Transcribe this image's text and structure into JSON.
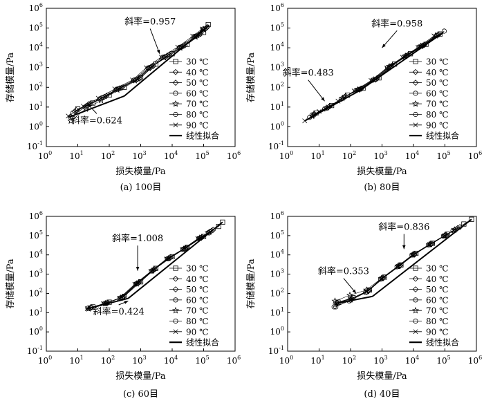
{
  "figure": {
    "legend_entries": [
      "30 ℃",
      "40 ℃",
      "50 ℃",
      "60 ℃",
      "70 ℃",
      "80 ℃",
      "90 ℃",
      "线性拟合"
    ],
    "legend_markers": [
      "square",
      "diamond",
      "diamond",
      "circle",
      "star",
      "circle",
      "x",
      "line"
    ],
    "y_ticks": [
      {
        "exp": -1,
        "label": "10",
        "sup": "-1"
      },
      {
        "exp": 0,
        "label": "10",
        "sup": "0"
      },
      {
        "exp": 1,
        "label": "10",
        "sup": "1"
      },
      {
        "exp": 2,
        "label": "10",
        "sup": "2"
      },
      {
        "exp": 3,
        "label": "10",
        "sup": "3"
      },
      {
        "exp": 4,
        "label": "10",
        "sup": "4"
      },
      {
        "exp": 5,
        "label": "10",
        "sup": "5"
      },
      {
        "exp": 6,
        "label": "10",
        "sup": "6"
      }
    ],
    "x_ticks": [
      {
        "exp": 0,
        "label": "10",
        "sup": "0"
      },
      {
        "exp": 1,
        "label": "10",
        "sup": "1"
      },
      {
        "exp": 2,
        "label": "10",
        "sup": "2"
      },
      {
        "exp": 3,
        "label": "10",
        "sup": "3"
      },
      {
        "exp": 4,
        "label": "10",
        "sup": "4"
      },
      {
        "exp": 5,
        "label": "10",
        "sup": "5"
      },
      {
        "exp": 6,
        "label": "10",
        "sup": "6"
      }
    ]
  },
  "chart_data": [
    {
      "type": "scatter",
      "id": "a",
      "caption": "(a) 100目",
      "xlabel": "损失模量/Pa",
      "ylabel": "存储模量/Pa",
      "xscale": "log",
      "yscale": "log",
      "xlim": [
        1,
        1000000
      ],
      "ylim": [
        0.1,
        1000000
      ],
      "annotations": [
        {
          "text": "斜率=0.957",
          "x": 2000,
          "y": 150000,
          "arrow_to": [
            4000,
            5000
          ]
        },
        {
          "text": "斜率=0.624",
          "x": 40,
          "y": 1.5,
          "arrow_to": [
            20,
            15
          ]
        }
      ],
      "fits": [
        {
          "slope": 0.624,
          "x": [
            5,
            300
          ],
          "y": [
            3,
            36
          ]
        },
        {
          "slope": 0.957,
          "x": [
            300,
            150000
          ],
          "y": [
            36,
            140000
          ]
        }
      ],
      "series": [
        {
          "name": "30 ℃",
          "x": [
            10,
            30,
            100,
            300,
            1000,
            3000,
            10000,
            30000,
            100000,
            140000
          ],
          "y": [
            8,
            16,
            40,
            100,
            300,
            1500,
            5000,
            15000,
            60000,
            150000
          ]
        },
        {
          "name": "40 ℃",
          "x": [
            9,
            25,
            80,
            250,
            900,
            2500,
            8000,
            25000,
            80000,
            130000
          ],
          "y": [
            7,
            15,
            36,
            95,
            280,
            1200,
            4500,
            13000,
            50000,
            110000
          ]
        },
        {
          "name": "50 ℃",
          "x": [
            8,
            22,
            70,
            220,
            800,
            2200,
            7000,
            22000,
            70000,
            120000
          ],
          "y": [
            6,
            14,
            33,
            90,
            260,
            1100,
            4000,
            12000,
            45000,
            100000
          ]
        },
        {
          "name": "60 ℃",
          "x": [
            7,
            20,
            60,
            200,
            700,
            2000,
            6000,
            20000,
            60000,
            110000
          ],
          "y": [
            5,
            12,
            30,
            85,
            240,
            1000,
            3500,
            11000,
            40000,
            90000
          ]
        },
        {
          "name": "70 ℃",
          "x": [
            6,
            18,
            55,
            180,
            650,
            1800,
            5500,
            18000,
            55000,
            100000
          ],
          "y": [
            2,
            8,
            22,
            75,
            220,
            900,
            3200,
            10000,
            36000,
            85000
          ]
        },
        {
          "name": "80 ℃",
          "x": [
            6,
            17,
            50,
            170,
            600,
            1700,
            5000,
            17000,
            50000,
            95000
          ],
          "y": [
            3,
            10,
            26,
            80,
            230,
            950,
            3300,
            10500,
            38000,
            88000
          ]
        },
        {
          "name": "90 ℃",
          "x": [
            5,
            15,
            45,
            150,
            550,
            1500,
            4500,
            15000,
            45000,
            90000
          ],
          "y": [
            3.5,
            11,
            28,
            82,
            235,
            980,
            3400,
            10800,
            39000,
            89000
          ]
        }
      ]
    },
    {
      "type": "scatter",
      "id": "b",
      "caption": "(b)  80目",
      "xlabel": "损失模量/Pa",
      "ylabel": "存储模量/Pa",
      "xscale": "log",
      "yscale": "log",
      "xlim": [
        1,
        1000000
      ],
      "ylim": [
        0.1,
        1000000
      ],
      "annotations": [
        {
          "text": "斜率=0.958",
          "x": 3000,
          "y": 120000,
          "arrow_to": [
            1000,
            10000
          ]
        },
        {
          "text": "斜率=0.483",
          "x": 4.5,
          "y": 380,
          "arrow_to": [
            15,
            20
          ]
        }
      ],
      "fits": [
        {
          "slope": 0.483,
          "x": [
            3.5,
            200
          ],
          "y": [
            2,
            70
          ]
        },
        {
          "slope": 0.958,
          "x": [
            200,
            90000
          ],
          "y": [
            70,
            60000
          ]
        }
      ],
      "series": [
        {
          "name": "30 ℃",
          "x": [
            8,
            25,
            80,
            250,
            800,
            2500,
            8000,
            25000,
            70000
          ],
          "y": [
            5,
            12,
            40,
            90,
            300,
            1500,
            5000,
            15000,
            50000
          ]
        },
        {
          "name": "40 ℃",
          "x": [
            7,
            22,
            70,
            220,
            700,
            2200,
            7000,
            22000,
            65000
          ],
          "y": [
            4.5,
            11,
            36,
            85,
            280,
            1300,
            4500,
            14000,
            48000
          ]
        },
        {
          "name": "50 ℃",
          "x": [
            7,
            20,
            65,
            200,
            650,
            2000,
            6500,
            20000,
            60000
          ],
          "y": [
            4,
            10,
            33,
            80,
            260,
            1200,
            4200,
            13000,
            45000
          ]
        },
        {
          "name": "60 ℃",
          "x": [
            6,
            18,
            60,
            180,
            600,
            1800,
            6000,
            18000,
            55000
          ],
          "y": [
            4,
            9,
            30,
            78,
            250,
            1150,
            4000,
            12500,
            43000
          ]
        },
        {
          "name": "70 ℃",
          "x": [
            6,
            17,
            55,
            170,
            550,
            1700,
            5500,
            17000,
            50000
          ],
          "y": [
            3.5,
            9,
            28,
            75,
            240,
            1100,
            3800,
            12000,
            41000
          ]
        },
        {
          "name": "80 ℃",
          "x": [
            5,
            15,
            50,
            150,
            500,
            1500,
            5000,
            15000,
            95000
          ],
          "y": [
            3,
            8,
            25,
            70,
            230,
            1000,
            3500,
            11000,
            70000
          ]
        },
        {
          "name": "90 ℃",
          "x": [
            3.5,
            10,
            40,
            130,
            450,
            1400,
            4500,
            14000,
            45000
          ],
          "y": [
            2,
            6,
            20,
            65,
            220,
            950,
            3300,
            10500,
            40000
          ]
        }
      ]
    },
    {
      "type": "scatter",
      "id": "c",
      "caption": "(c)  60目",
      "xlabel": "损失模量/Pa",
      "ylabel": "存储模量/Pa",
      "xscale": "log",
      "yscale": "log",
      "xlim": [
        1,
        1000000
      ],
      "ylim": [
        0.1,
        1000000
      ],
      "annotations": [
        {
          "text": "斜率=1.008",
          "x": 800,
          "y": 50000,
          "arrow_to": [
            800,
            1500
          ]
        },
        {
          "text": "斜率=0.424",
          "x": 200,
          "y": 8,
          "arrow_to": [
            400,
            40
          ]
        }
      ],
      "fits": [
        {
          "slope": 0.424,
          "x": [
            20,
            400
          ],
          "y": [
            16,
            55
          ]
        },
        {
          "slope": 1.008,
          "x": [
            400,
            400000
          ],
          "y": [
            55,
            500000
          ]
        }
      ],
      "series": [
        {
          "name": "30 ℃",
          "x": [
            30,
            100,
            300,
            1000,
            3000,
            10000,
            30000,
            100000,
            300000,
            400000
          ],
          "y": [
            20,
            35,
            70,
            400,
            2000,
            8000,
            25000,
            90000,
            300000,
            500000
          ]
        },
        {
          "name": "40 ℃",
          "x": [
            28,
            90,
            280,
            900,
            2800,
            9000,
            28000,
            90000,
            200000
          ],
          "y": [
            19,
            33,
            65,
            380,
            1800,
            7500,
            23000,
            85000,
            200000
          ]
        },
        {
          "name": "50 ℃",
          "x": [
            26,
            85,
            260,
            850,
            2600,
            8500,
            26000,
            85000,
            180000
          ],
          "y": [
            18,
            32,
            62,
            360,
            1700,
            7000,
            22000,
            80000,
            180000
          ]
        },
        {
          "name": "60 ℃",
          "x": [
            25,
            80,
            250,
            800,
            2500,
            8000,
            25000,
            80000,
            160000
          ],
          "y": [
            18,
            31,
            60,
            340,
            1600,
            6800,
            21000,
            78000,
            160000
          ]
        },
        {
          "name": "70 ℃",
          "x": [
            22,
            75,
            230,
            750,
            2300,
            7500,
            23000,
            75000,
            150000
          ],
          "y": [
            16,
            30,
            58,
            320,
            1500,
            6500,
            20000,
            75000,
            150000
          ]
        },
        {
          "name": "80 ℃",
          "x": [
            21,
            70,
            220,
            700,
            2200,
            7000,
            22000,
            70000,
            140000
          ],
          "y": [
            17,
            30,
            57,
            310,
            1450,
            6300,
            19500,
            72000,
            140000
          ]
        },
        {
          "name": "90 ℃",
          "x": [
            20,
            65,
            210,
            650,
            2100,
            6500,
            21000,
            65000,
            130000
          ],
          "y": [
            16,
            29,
            56,
            300,
            1400,
            6100,
            19000,
            70000,
            130000
          ]
        }
      ]
    },
    {
      "type": "scatter",
      "id": "d",
      "caption": "(d)  40目",
      "xlabel": "损失模量/Pa",
      "ylabel": "存储模量/Pa",
      "xscale": "log",
      "yscale": "log",
      "xlim": [
        1,
        1000000
      ],
      "ylim": [
        0.1,
        1000000
      ],
      "annotations": [
        {
          "text": "斜率=0.836",
          "x": 5000,
          "y": 200000,
          "arrow_to": [
            5000,
            20000
          ]
        },
        {
          "text": "斜率=0.353",
          "x": 60,
          "y": 1000,
          "arrow_to": [
            150,
            100
          ]
        }
      ],
      "fits": [
        {
          "slope": 0.353,
          "x": [
            35,
            500
          ],
          "y": [
            30,
            70
          ]
        },
        {
          "slope": 0.836,
          "x": [
            500,
            700000
          ],
          "y": [
            70,
            700000
          ]
        }
      ],
      "series": [
        {
          "name": "30 ℃",
          "x": [
            40,
            120,
            400,
            1200,
            4000,
            12000,
            40000,
            120000,
            400000,
            700000
          ],
          "y": [
            35,
            60,
            150,
            700,
            3000,
            12000,
            40000,
            120000,
            400000,
            700000
          ]
        },
        {
          "name": "40 ℃",
          "x": [
            38,
            110,
            380,
            1100,
            3800,
            11000,
            38000,
            110000,
            300000
          ],
          "y": [
            33,
            55,
            140,
            650,
            2800,
            11000,
            38000,
            110000,
            280000
          ]
        },
        {
          "name": "50 ℃",
          "x": [
            36,
            105,
            360,
            1050,
            3600,
            10500,
            36000,
            105000,
            250000
          ],
          "y": [
            31,
            52,
            135,
            620,
            2700,
            10500,
            36000,
            105000,
            240000
          ]
        },
        {
          "name": "60 ℃",
          "x": [
            34,
            100,
            340,
            1000,
            3400,
            10000,
            34000,
            100000,
            220000
          ],
          "y": [
            20,
            45,
            120,
            580,
            2500,
            10000,
            34000,
            100000,
            210000
          ]
        },
        {
          "name": "70 ℃",
          "x": [
            32,
            95,
            320,
            950,
            3200,
            9500,
            32000,
            95000,
            200000
          ],
          "y": [
            40,
            80,
            150,
            600,
            2600,
            10200,
            35000,
            98000,
            200000
          ]
        },
        {
          "name": "80 ℃",
          "x": [
            30,
            90,
            300,
            900,
            3000,
            9000,
            30000,
            90000,
            180000
          ],
          "y": [
            20,
            40,
            110,
            550,
            2400,
            9800,
            33000,
            95000,
            180000
          ]
        },
        {
          "name": "90 ℃",
          "x": [
            35,
            100,
            330,
            980,
            3300,
            9800,
            33000,
            98000,
            190000
          ],
          "y": [
            30,
            45,
            125,
            590,
            2550,
            10100,
            34500,
            99000,
            190000
          ]
        }
      ]
    }
  ]
}
